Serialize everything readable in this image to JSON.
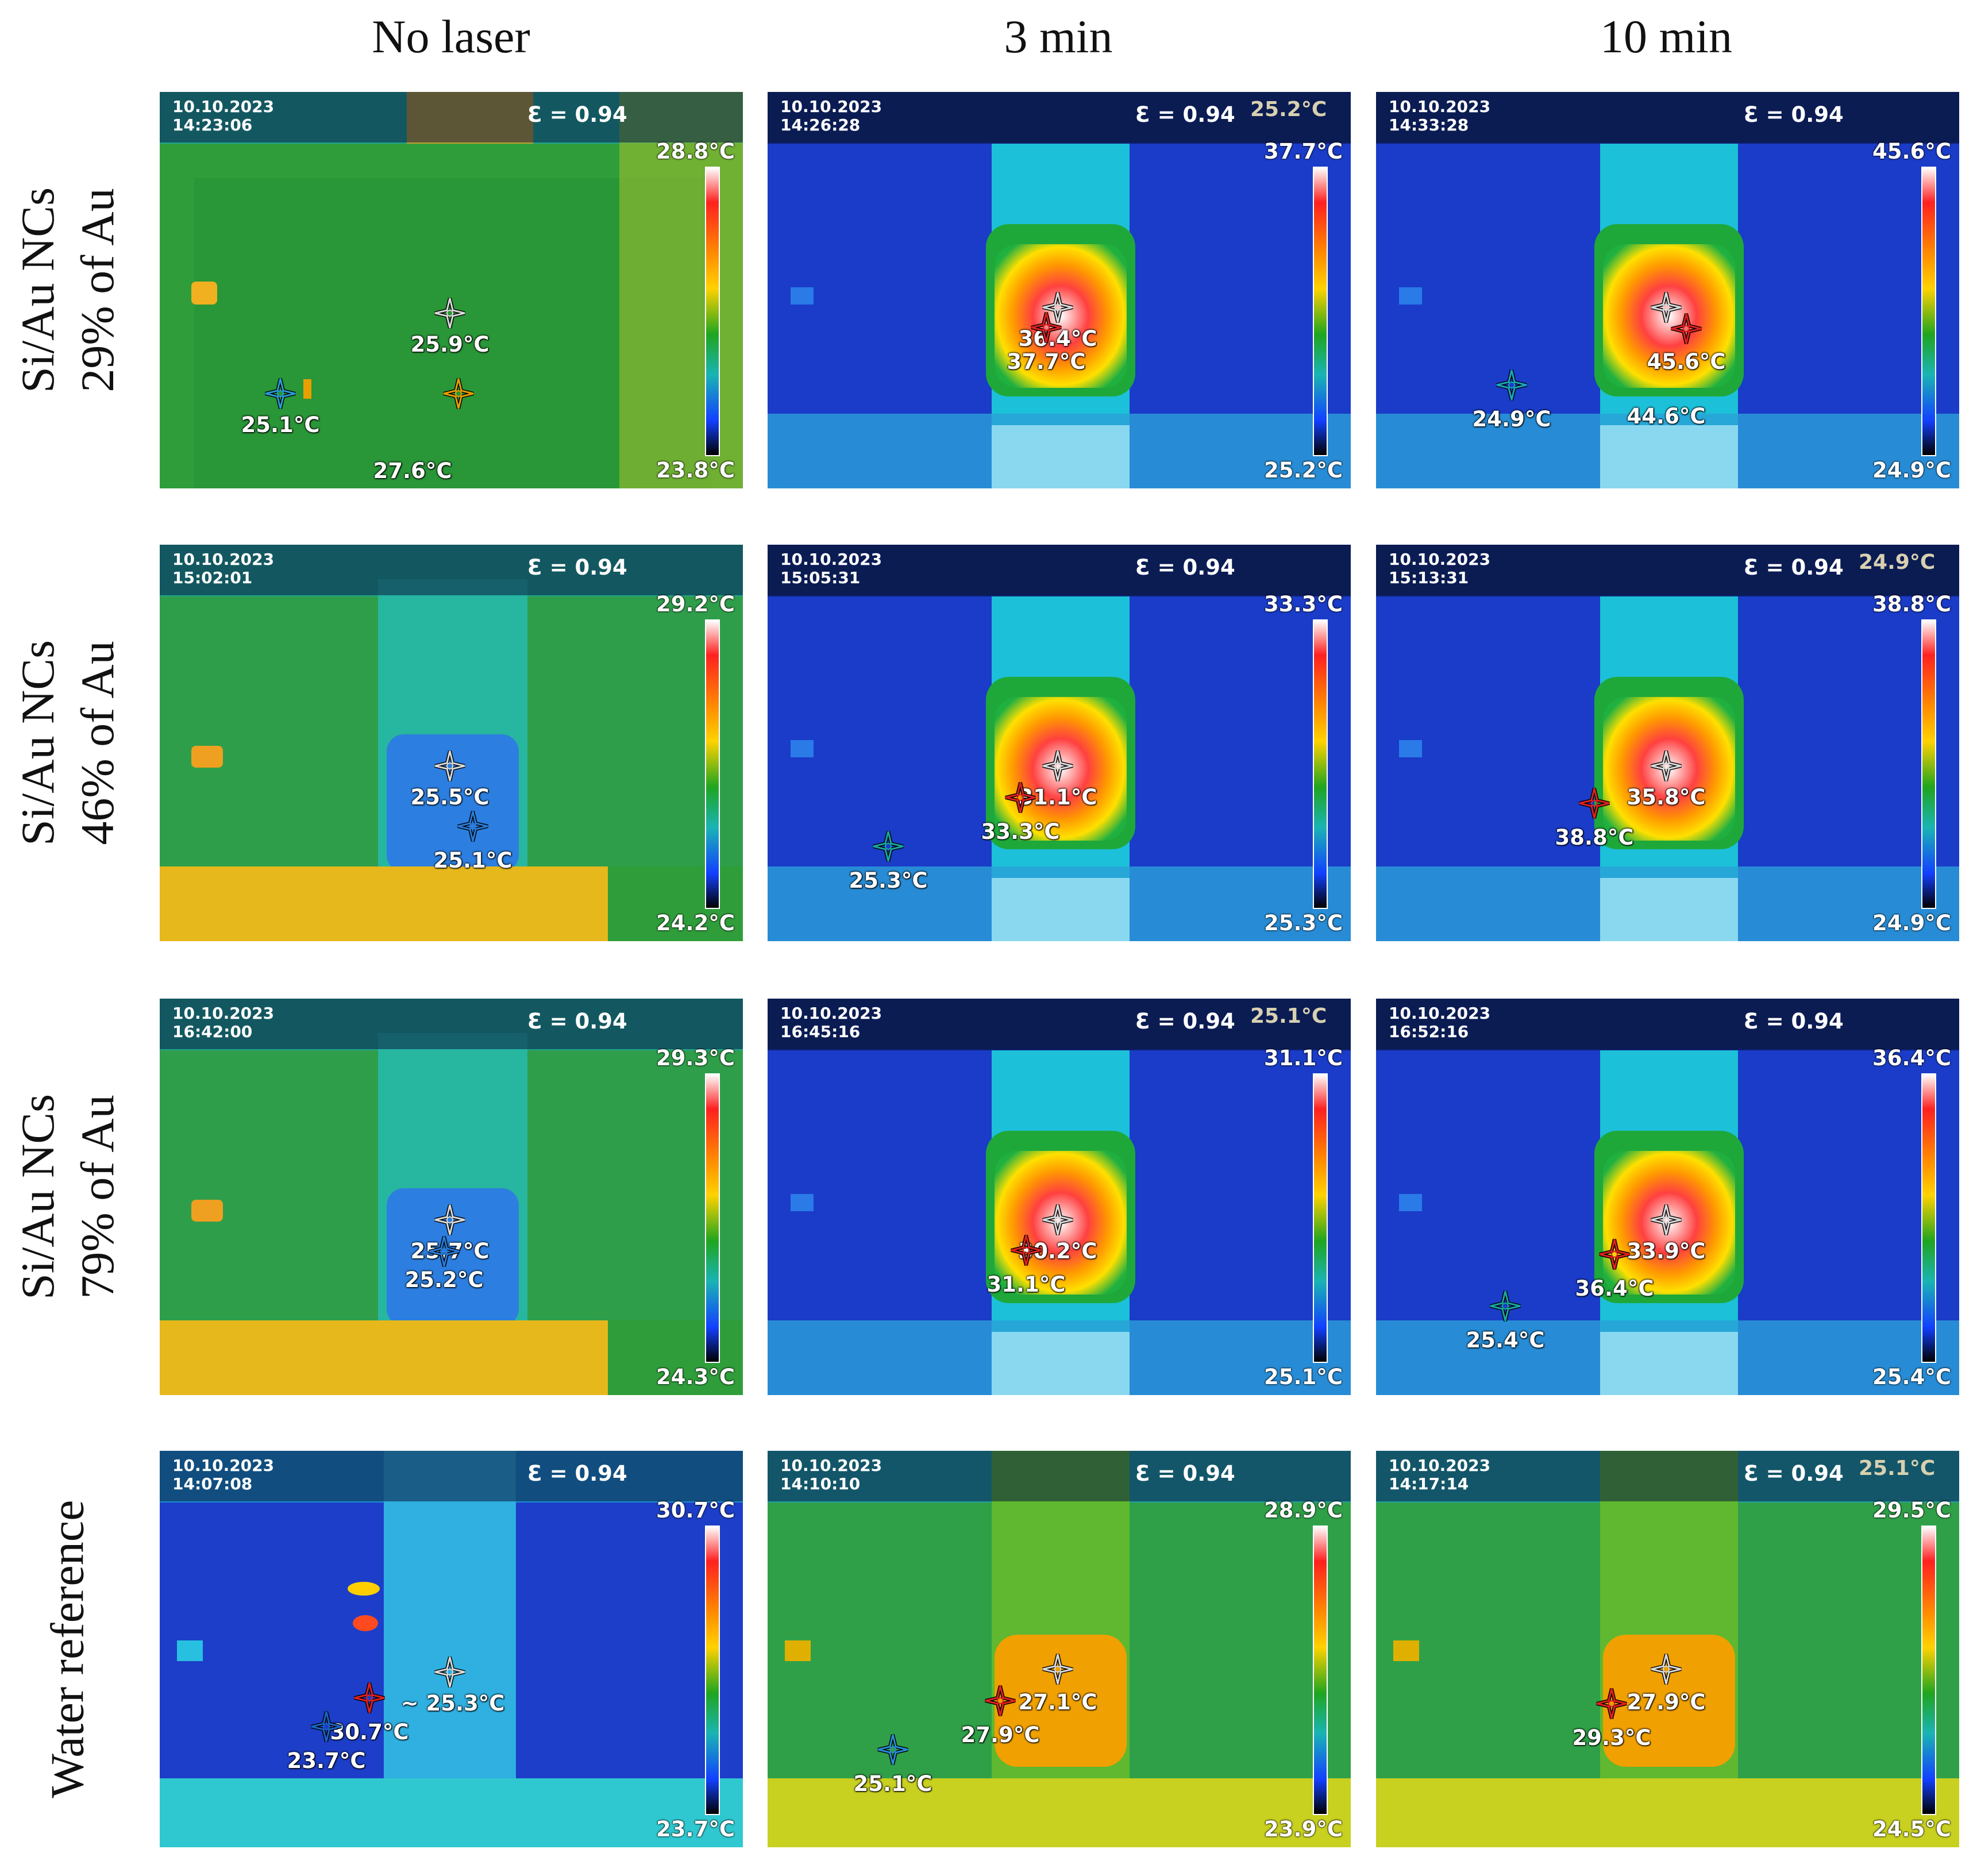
{
  "columns": [
    "No laser",
    "3 min",
    "10 min"
  ],
  "rows": [
    {
      "line1": "Si/Au NCs",
      "line2": "29% of Au"
    },
    {
      "line1": "Si/Au NCs",
      "line2": "46% of Au"
    },
    {
      "line1": "Si/Au NCs",
      "line2": "79% of Au"
    },
    {
      "line1": "Water reference",
      "line2": ""
    }
  ],
  "panels": [
    {
      "date": "10.10.2023",
      "time": "14:23:06",
      "eps": "Ɛ = 0.94",
      "extra": "",
      "max": "28.8°C",
      "min": "23.8°C",
      "theme": "green",
      "markers": [
        {
          "label": "25.9°C",
          "color": "#d9d9d9"
        },
        {
          "label": "25.1°C",
          "color": "#2b9bd8"
        },
        {
          "label": "27.6°C",
          "color": "#e8a000"
        }
      ]
    },
    {
      "date": "10.10.2023",
      "time": "14:26:28",
      "eps": "Ɛ = 0.94",
      "extra": "25.2°C",
      "max": "37.7°C",
      "min": "25.2°C",
      "theme": "blue-hot",
      "markers": [
        {
          "label": "36.4°C",
          "color": "#d9d9d9"
        },
        {
          "label": "37.7°C",
          "color": "#e02020"
        }
      ]
    },
    {
      "date": "10.10.2023",
      "time": "14:33:28",
      "eps": "Ɛ = 0.94",
      "extra": "",
      "max": "45.6°C",
      "min": "24.9°C",
      "theme": "blue-hot",
      "markers": [
        {
          "label": "44.6°C",
          "color": "#d9d9d9"
        },
        {
          "label": "45.6°C",
          "color": "#e02020"
        },
        {
          "label": "24.9°C",
          "color": "#19a8c0"
        }
      ]
    },
    {
      "date": "10.10.2023",
      "time": "15:02:01",
      "eps": "Ɛ = 0.94",
      "extra": "",
      "max": "29.2°C",
      "min": "24.2°C",
      "theme": "green-cup",
      "markers": [
        {
          "label": "25.5°C",
          "color": "#d9d9d9"
        },
        {
          "label": "25.1°C",
          "color": "#2b7bd8"
        }
      ]
    },
    {
      "date": "10.10.2023",
      "time": "15:05:31",
      "eps": "Ɛ = 0.94",
      "extra": "",
      "max": "33.3°C",
      "min": "25.3°C",
      "theme": "blue-hot",
      "markers": [
        {
          "label": "31.1°C",
          "color": "#d9d9d9"
        },
        {
          "label": "33.3°C",
          "color": "#e02020"
        },
        {
          "label": "25.3°C",
          "color": "#19a8a0"
        }
      ]
    },
    {
      "date": "10.10.2023",
      "time": "15:13:31",
      "eps": "Ɛ = 0.94",
      "extra": "24.9°C",
      "max": "38.8°C",
      "min": "24.9°C",
      "theme": "blue-hot",
      "markers": [
        {
          "label": "35.8°C",
          "color": "#d9d9d9"
        },
        {
          "label": "38.8°C",
          "color": "#e02020"
        }
      ]
    },
    {
      "date": "10.10.2023",
      "time": "16:42:00",
      "eps": "Ɛ = 0.94",
      "extra": "",
      "max": "29.3°C",
      "min": "24.3°C",
      "theme": "green-cup",
      "markers": [
        {
          "label": "25.7°C",
          "color": "#d9d9d9"
        },
        {
          "label": "25.2°C",
          "color": "#2b7bd8"
        }
      ]
    },
    {
      "date": "10.10.2023",
      "time": "16:45:16",
      "eps": "Ɛ = 0.94",
      "extra": "25.1°C",
      "max": "31.1°C",
      "min": "25.1°C",
      "theme": "blue-hot",
      "markers": [
        {
          "label": "30.2°C",
          "color": "#d9d9d9"
        },
        {
          "label": "31.1°C",
          "color": "#e02020"
        }
      ]
    },
    {
      "date": "10.10.2023",
      "time": "16:52:16",
      "eps": "Ɛ = 0.94",
      "extra": "",
      "max": "36.4°C",
      "min": "25.4°C",
      "theme": "blue-hot",
      "markers": [
        {
          "label": "33.9°C",
          "color": "#d9d9d9"
        },
        {
          "label": "36.4°C",
          "color": "#e02020"
        },
        {
          "label": "25.4°C",
          "color": "#19a8a0"
        }
      ]
    },
    {
      "date": "10.10.2023",
      "time": "14:07:08",
      "eps": "Ɛ = 0.94",
      "extra": "",
      "max": "30.7°C",
      "min": "23.7°C",
      "theme": "blue-water",
      "markers": [
        {
          "label": "~ 25.3°C",
          "color": "#d9d9d9"
        },
        {
          "label": "30.7°C",
          "color": "#e02020"
        },
        {
          "label": "23.7°C",
          "color": "#1a66c8"
        }
      ]
    },
    {
      "date": "10.10.2023",
      "time": "14:10:10",
      "eps": "Ɛ = 0.94",
      "extra": "",
      "max": "28.9°C",
      "min": "23.9°C",
      "theme": "green-warm",
      "markers": [
        {
          "label": "27.1°C",
          "color": "#d9d9d9"
        },
        {
          "label": "27.9°C",
          "color": "#e02020"
        },
        {
          "label": "25.1°C",
          "color": "#2b8bd8"
        }
      ]
    },
    {
      "date": "10.10.2023",
      "time": "14:17:14",
      "eps": "Ɛ = 0.94",
      "extra": "25.1°C",
      "max": "29.5°C",
      "min": "24.5°C",
      "theme": "green-warm",
      "markers": [
        {
          "label": "27.9°C",
          "color": "#d9d9d9"
        },
        {
          "label": "29.3°C",
          "color": "#e02020"
        }
      ]
    }
  ]
}
